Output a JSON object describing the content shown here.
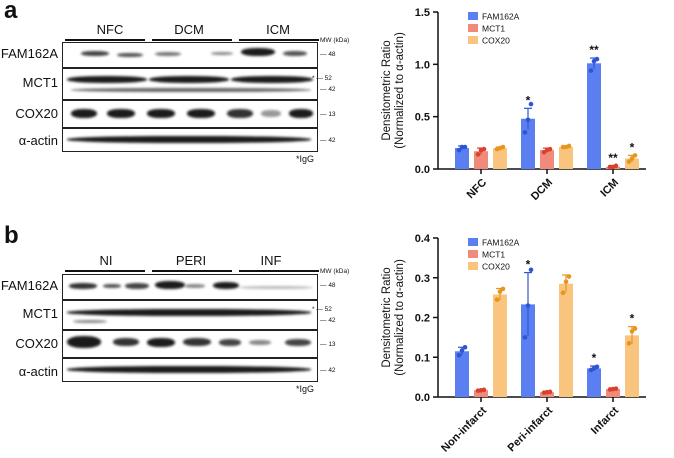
{
  "panels": [
    {
      "letter": "a",
      "groups": [
        "NFC",
        "DCM",
        "ICM"
      ],
      "mw_header": "MW (kDa)",
      "rows": [
        {
          "label": "FAM162A",
          "markers": [
            "48"
          ]
        },
        {
          "label": "MCT1",
          "markers": [
            "52",
            "42"
          ],
          "asterisk": "*"
        },
        {
          "label": "COX20",
          "markers": [
            "13"
          ]
        },
        {
          "label": "α-actin",
          "markers": [
            "42"
          ]
        }
      ],
      "footnote": "*IgG"
    },
    {
      "letter": "b",
      "groups": [
        "NI",
        "PERI",
        "INF"
      ],
      "mw_header": "MW (kDa)",
      "rows": [
        {
          "label": "FAM162A",
          "markers": [
            "48"
          ]
        },
        {
          "label": "MCT1",
          "markers": [
            "52",
            "42"
          ],
          "asterisk": "*"
        },
        {
          "label": "COX20",
          "markers": [
            "13"
          ]
        },
        {
          "label": "α-actin",
          "markers": [
            "42"
          ]
        }
      ],
      "footnote": "*IgG"
    }
  ],
  "colors": {
    "FAM162A": "#5b7ff0",
    "MCT1": "#f08a7a",
    "COX20": "#f8c47e",
    "FAM162A_pt": "#2f55d4",
    "MCT1_pt": "#d9412e",
    "COX20_pt": "#e8951e"
  },
  "chart_data": [
    {
      "type": "bar",
      "ylabel": "Densitometric Ratio",
      "ylabel2": "(Normalized to α-actin)",
      "categories": [
        "NFC",
        "DCM",
        "ICM"
      ],
      "ylim": [
        0,
        1.5
      ],
      "yticks": [
        "0.0",
        "0.5",
        "1.0",
        "1.5"
      ],
      "legend_position": "top-left",
      "series": [
        {
          "name": "FAM162A",
          "values": [
            0.2,
            0.48,
            1.01
          ],
          "err": [
            0.02,
            0.1,
            0.05
          ],
          "points": [
            [
              0.18,
              0.21,
              0.21
            ],
            [
              0.35,
              0.47,
              0.62
            ],
            [
              0.94,
              1.03,
              1.05
            ]
          ],
          "stars": [
            "",
            "*",
            "**"
          ]
        },
        {
          "name": "MCT1",
          "values": [
            0.17,
            0.18,
            0.02
          ],
          "err": [
            0.03,
            0.02,
            0.01
          ],
          "points": [
            [
              0.14,
              0.18,
              0.19
            ],
            [
              0.16,
              0.18,
              0.19
            ],
            [
              0.02,
              0.02,
              0.03
            ]
          ],
          "stars": [
            "",
            "",
            "**"
          ]
        },
        {
          "name": "COX20",
          "values": [
            0.2,
            0.21,
            0.1
          ],
          "err": [
            0.01,
            0.01,
            0.03
          ],
          "points": [
            [
              0.19,
              0.2,
              0.21
            ],
            [
              0.21,
              0.21,
              0.22
            ],
            [
              0.07,
              0.1,
              0.13
            ]
          ],
          "stars": [
            "",
            "",
            "*"
          ]
        }
      ]
    },
    {
      "type": "bar",
      "ylabel": "Densitometric Ratio",
      "ylabel2": "(Normalized to α-actin)",
      "categories": [
        "Non-infarct",
        "Peri-infarct",
        "Infarct"
      ],
      "ylim": [
        0,
        0.4
      ],
      "yticks": [
        "0.0",
        "0.1",
        "0.2",
        "0.3",
        "0.4"
      ],
      "legend_position": "top-left",
      "series": [
        {
          "name": "FAM162A",
          "values": [
            0.115,
            0.233,
            0.072
          ],
          "err": [
            0.01,
            0.08,
            0.006
          ],
          "points": [
            [
              0.105,
              0.117,
              0.125
            ],
            [
              0.15,
              0.23,
              0.32
            ],
            [
              0.068,
              0.072,
              0.076
            ]
          ],
          "stars": [
            "",
            "*",
            "*"
          ]
        },
        {
          "name": "MCT1",
          "values": [
            0.017,
            0.012,
            0.02
          ],
          "err": [
            0.002,
            0.002,
            0.002
          ],
          "points": [
            [
              0.016,
              0.017,
              0.018
            ],
            [
              0.011,
              0.012,
              0.013
            ],
            [
              0.019,
              0.02,
              0.021
            ]
          ],
          "stars": [
            "",
            "",
            ""
          ]
        },
        {
          "name": "COX20",
          "values": [
            0.258,
            0.285,
            0.155
          ],
          "err": [
            0.015,
            0.022,
            0.022
          ],
          "points": [
            [
              0.245,
              0.265,
              0.272
            ],
            [
              0.262,
              0.29,
              0.303
            ],
            [
              0.135,
              0.165,
              0.172
            ]
          ],
          "stars": [
            "",
            "",
            "*"
          ]
        }
      ]
    }
  ]
}
